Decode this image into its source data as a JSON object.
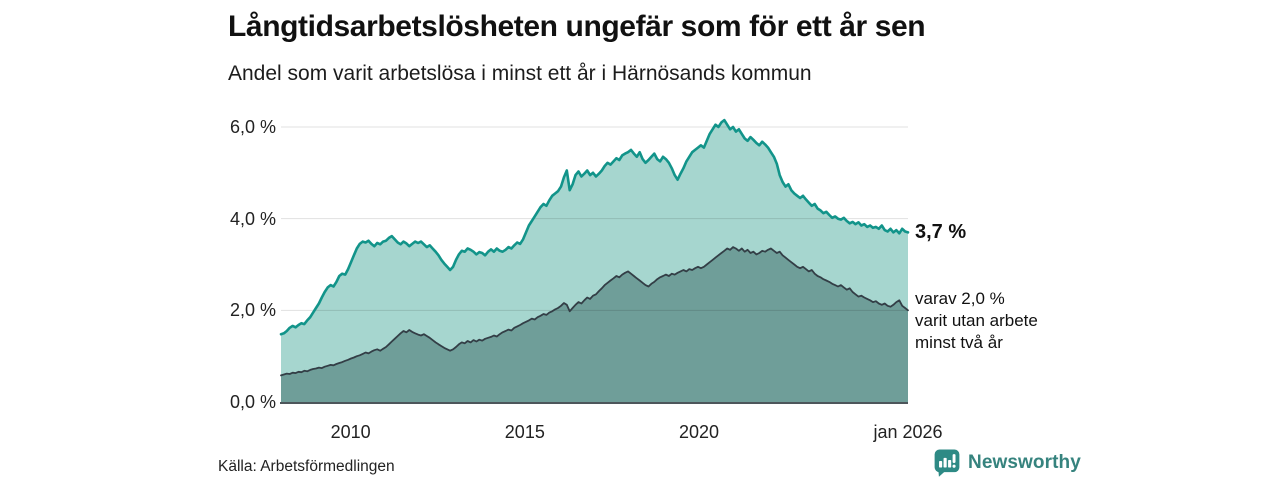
{
  "header": {
    "title": "Långtidsarbetslösheten ungefär som för ett år sen",
    "subtitle": "Andel som varit arbetslösa i minst ett år i Härnösands kommun"
  },
  "chart_data": {
    "type": "area",
    "title": "Långtidsarbetslösheten ungefär som för ett år sen",
    "subtitle": "Andel som varit arbetslösa i minst ett år i Härnösands kommun",
    "unit": "%",
    "x_range": {
      "start_year": 2008,
      "end_year": 2026,
      "points_per_year": 12
    },
    "ylim": [
      0,
      6.55
    ],
    "grid": true,
    "yticks": [
      {
        "value": 0,
        "label": "0,0 %"
      },
      {
        "value": 2,
        "label": "2,0 %"
      },
      {
        "value": 4,
        "label": "4,0 %"
      },
      {
        "value": 6,
        "label": "6,0 %"
      }
    ],
    "xticks": [
      {
        "year": 2010,
        "label": "2010"
      },
      {
        "year": 2015,
        "label": "2015"
      },
      {
        "year": 2020,
        "label": "2020"
      },
      {
        "year": 2026,
        "label": "jan 2026"
      }
    ],
    "colors": {
      "line_total": "#12948a",
      "fill_total": "#a6d6cf",
      "line_subset": "#333e46",
      "fill_subset": "#6f9e99",
      "gridline": "rgba(0,0,0,0.12)",
      "axis": "#4d565b"
    },
    "series": [
      {
        "name": "Andel arbetslösa minst ett år",
        "last_value_label": "3,7 %",
        "values": [
          1.48,
          1.5,
          1.55,
          1.62,
          1.66,
          1.63,
          1.68,
          1.72,
          1.7,
          1.78,
          1.85,
          1.95,
          2.05,
          2.15,
          2.28,
          2.4,
          2.5,
          2.55,
          2.52,
          2.62,
          2.75,
          2.8,
          2.78,
          2.9,
          3.05,
          3.2,
          3.35,
          3.45,
          3.5,
          3.48,
          3.52,
          3.45,
          3.4,
          3.47,
          3.44,
          3.5,
          3.52,
          3.58,
          3.62,
          3.55,
          3.48,
          3.44,
          3.5,
          3.46,
          3.4,
          3.45,
          3.5,
          3.47,
          3.5,
          3.44,
          3.38,
          3.42,
          3.35,
          3.28,
          3.2,
          3.1,
          3.02,
          2.95,
          2.88,
          2.95,
          3.1,
          3.22,
          3.3,
          3.28,
          3.35,
          3.32,
          3.28,
          3.22,
          3.27,
          3.25,
          3.2,
          3.28,
          3.33,
          3.28,
          3.35,
          3.3,
          3.28,
          3.32,
          3.38,
          3.35,
          3.42,
          3.48,
          3.45,
          3.55,
          3.7,
          3.85,
          3.95,
          4.05,
          4.15,
          4.25,
          4.32,
          4.28,
          4.4,
          4.5,
          4.55,
          4.6,
          4.7,
          4.9,
          5.05,
          4.62,
          4.75,
          4.95,
          5.03,
          4.92,
          4.98,
          5.05,
          4.95,
          5.0,
          4.92,
          4.98,
          5.05,
          5.15,
          5.22,
          5.18,
          5.25,
          5.32,
          5.28,
          5.38,
          5.42,
          5.45,
          5.5,
          5.42,
          5.35,
          5.45,
          5.3,
          5.22,
          5.28,
          5.35,
          5.42,
          5.3,
          5.25,
          5.35,
          5.3,
          5.22,
          5.1,
          4.95,
          4.85,
          4.98,
          5.1,
          5.25,
          5.35,
          5.45,
          5.5,
          5.55,
          5.6,
          5.55,
          5.7,
          5.85,
          5.95,
          6.05,
          6.0,
          6.1,
          6.15,
          6.05,
          5.95,
          6.0,
          5.9,
          5.95,
          5.85,
          5.75,
          5.7,
          5.78,
          5.72,
          5.65,
          5.6,
          5.68,
          5.62,
          5.55,
          5.45,
          5.35,
          5.2,
          4.95,
          4.8,
          4.7,
          4.75,
          4.62,
          4.55,
          4.5,
          4.45,
          4.5,
          4.42,
          4.35,
          4.28,
          4.32,
          4.22,
          4.18,
          4.12,
          4.15,
          4.08,
          4.02,
          4.05,
          4.0,
          3.98,
          4.02,
          3.95,
          3.9,
          3.93,
          3.88,
          3.92,
          3.85,
          3.88,
          3.82,
          3.85,
          3.8,
          3.82,
          3.78,
          3.85,
          3.75,
          3.72,
          3.78,
          3.7,
          3.75,
          3.68,
          3.78,
          3.72,
          3.7
        ]
      },
      {
        "name": "Andel arbetslösa minst två år",
        "last_value_label": "2,0 %",
        "values": [
          0.58,
          0.6,
          0.62,
          0.61,
          0.64,
          0.63,
          0.66,
          0.65,
          0.68,
          0.67,
          0.7,
          0.72,
          0.73,
          0.75,
          0.74,
          0.77,
          0.79,
          0.81,
          0.8,
          0.83,
          0.85,
          0.87,
          0.9,
          0.92,
          0.95,
          0.97,
          1.0,
          1.02,
          1.05,
          1.08,
          1.06,
          1.1,
          1.13,
          1.15,
          1.12,
          1.16,
          1.2,
          1.26,
          1.32,
          1.38,
          1.44,
          1.5,
          1.55,
          1.52,
          1.57,
          1.53,
          1.5,
          1.47,
          1.45,
          1.48,
          1.44,
          1.4,
          1.35,
          1.3,
          1.26,
          1.22,
          1.18,
          1.15,
          1.12,
          1.15,
          1.2,
          1.26,
          1.3,
          1.28,
          1.33,
          1.3,
          1.35,
          1.32,
          1.36,
          1.34,
          1.38,
          1.4,
          1.42,
          1.45,
          1.43,
          1.48,
          1.52,
          1.55,
          1.58,
          1.56,
          1.62,
          1.65,
          1.68,
          1.72,
          1.75,
          1.78,
          1.82,
          1.8,
          1.85,
          1.88,
          1.92,
          1.9,
          1.95,
          1.98,
          2.02,
          2.05,
          2.1,
          2.16,
          2.12,
          1.98,
          2.05,
          2.12,
          2.18,
          2.15,
          2.22,
          2.28,
          2.25,
          2.32,
          2.35,
          2.42,
          2.48,
          2.55,
          2.6,
          2.65,
          2.7,
          2.75,
          2.72,
          2.78,
          2.82,
          2.85,
          2.8,
          2.75,
          2.7,
          2.65,
          2.6,
          2.55,
          2.52,
          2.58,
          2.62,
          2.68,
          2.72,
          2.75,
          2.78,
          2.75,
          2.8,
          2.78,
          2.82,
          2.85,
          2.88,
          2.85,
          2.9,
          2.88,
          2.92,
          2.95,
          2.92,
          2.95,
          3.0,
          3.05,
          3.1,
          3.15,
          3.2,
          3.25,
          3.3,
          3.35,
          3.32,
          3.38,
          3.35,
          3.3,
          3.35,
          3.28,
          3.32,
          3.25,
          3.28,
          3.22,
          3.25,
          3.3,
          3.28,
          3.32,
          3.35,
          3.3,
          3.25,
          3.28,
          3.2,
          3.15,
          3.1,
          3.05,
          3.0,
          2.95,
          2.92,
          2.95,
          2.9,
          2.85,
          2.88,
          2.8,
          2.75,
          2.72,
          2.68,
          2.65,
          2.62,
          2.58,
          2.55,
          2.52,
          2.55,
          2.5,
          2.45,
          2.48,
          2.4,
          2.35,
          2.3,
          2.32,
          2.28,
          2.25,
          2.22,
          2.18,
          2.2,
          2.15,
          2.12,
          2.15,
          2.1,
          2.08,
          2.12,
          2.18,
          2.22,
          2.1,
          2.05,
          2.0
        ]
      }
    ],
    "annotations": {
      "total_label": "3,7 %",
      "subset_text": "varav 2,0 %\nvarit utan arbete\nminst två år"
    },
    "legend_position": "right-annotations"
  },
  "footer": {
    "source": "Källa: Arbetsförmedlingen",
    "brand": "Newsworthy"
  },
  "icons": {
    "brand_icon": "bar-chart-speech-bubble-icon"
  }
}
